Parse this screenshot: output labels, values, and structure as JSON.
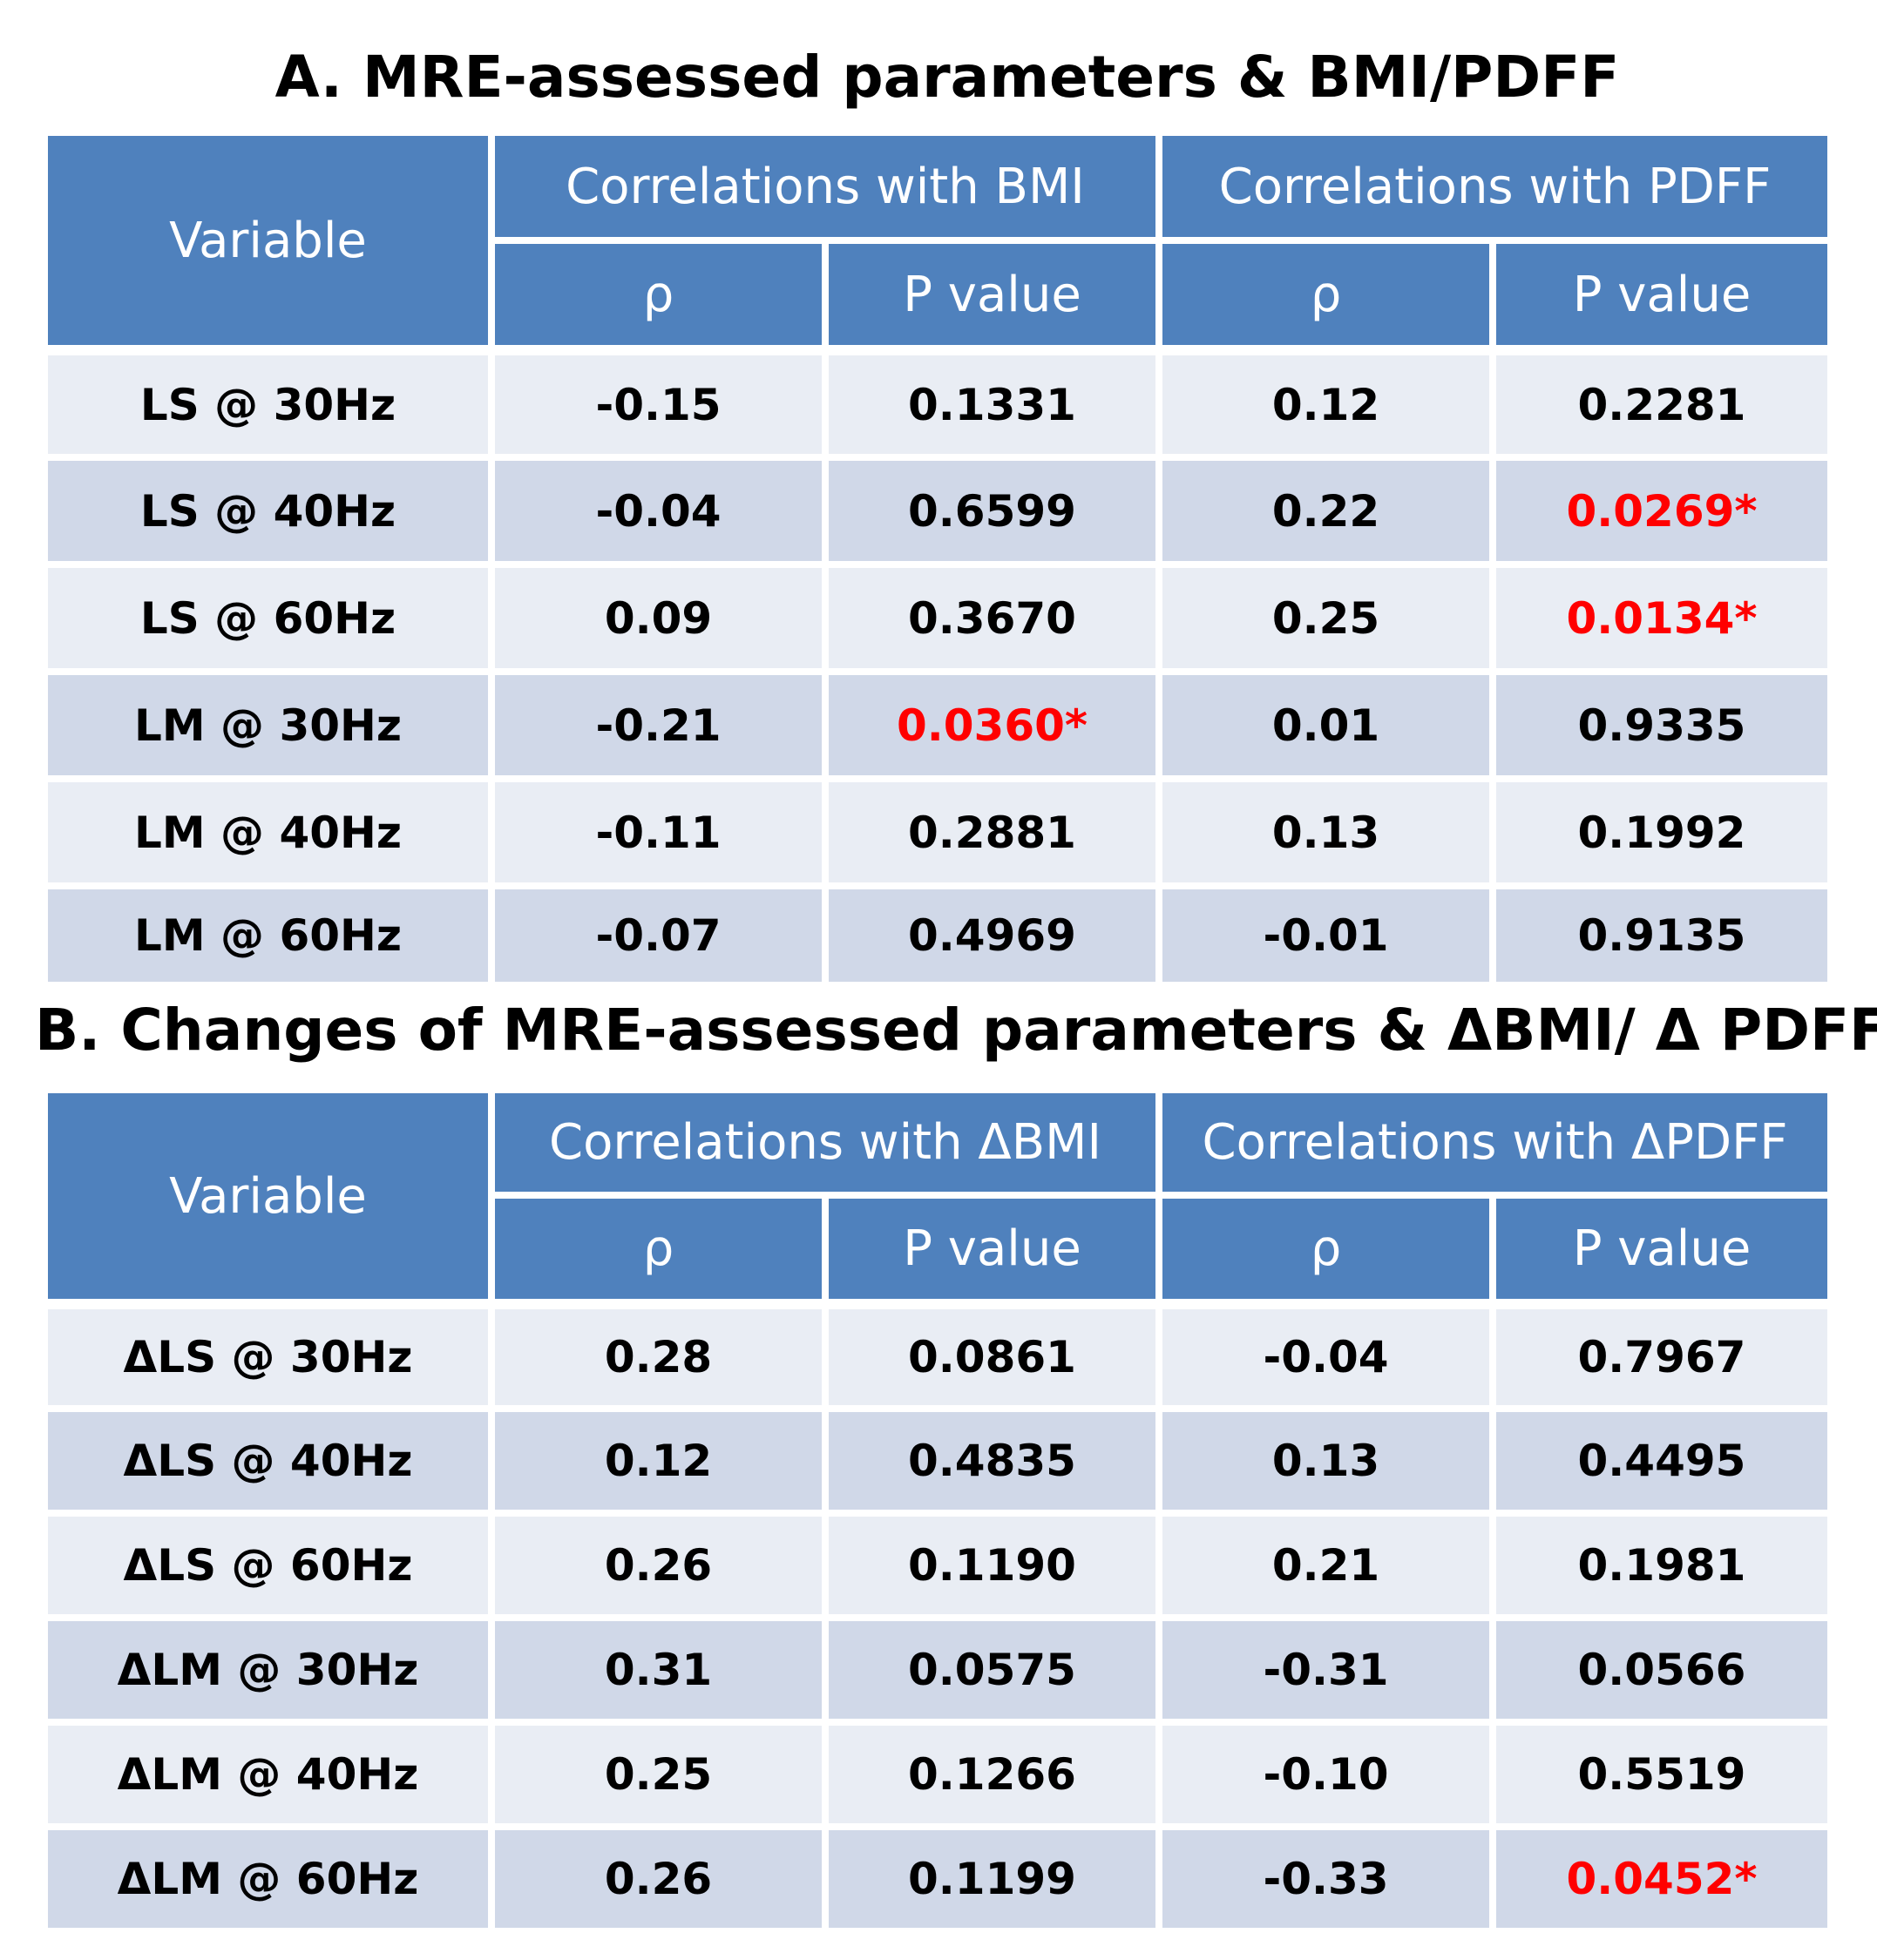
{
  "colors": {
    "header_bg": "#4f81bd",
    "header_text": "#ffffff",
    "row_light": "#e9edf4",
    "row_dark": "#d0d8e8",
    "significant_text": "#ff0000"
  },
  "table_a": {
    "title": "A. MRE-assessed parameters & BMI/PDFF",
    "variable_header": "Variable",
    "group1_header": "Correlations with BMI",
    "group2_header": "Correlations with PDFF",
    "rho_label": "ρ",
    "p_label": "P value",
    "rows": [
      {
        "variable": "LS @ 30Hz",
        "rho1": "-0.15",
        "p1": "0.1331",
        "rho2": "0.12",
        "p2": "0.2281",
        "sig": [
          false,
          false
        ]
      },
      {
        "variable": "LS @ 40Hz",
        "rho1": "-0.04",
        "p1": "0.6599",
        "rho2": "0.22",
        "p2": "0.0269*",
        "sig": [
          false,
          true
        ]
      },
      {
        "variable": "LS @ 60Hz",
        "rho1": "0.09",
        "p1": "0.3670",
        "rho2": "0.25",
        "p2": "0.0134*",
        "sig": [
          false,
          true
        ]
      },
      {
        "variable": "LM @ 30Hz",
        "rho1": "-0.21",
        "p1": "0.0360*",
        "rho2": "0.01",
        "p2": "0.9335",
        "sig": [
          true,
          false
        ]
      },
      {
        "variable": "LM @ 40Hz",
        "rho1": "-0.11",
        "p1": "0.2881",
        "rho2": "0.13",
        "p2": "0.1992",
        "sig": [
          false,
          false
        ]
      },
      {
        "variable": "LM @ 60Hz",
        "rho1": "-0.07",
        "p1": "0.4969",
        "rho2": "-0.01",
        "p2": "0.9135",
        "sig": [
          false,
          false
        ]
      }
    ]
  },
  "table_b": {
    "title": "B. Changes of MRE-assessed parameters & ΔBMI/ Δ PDFF",
    "variable_header": "Variable",
    "group1_header": "Correlations with ΔBMI",
    "group2_header": "Correlations with ΔPDFF",
    "rho_label": "ρ",
    "p_label": "P value",
    "rows": [
      {
        "variable": "ΔLS @ 30Hz",
        "rho1": "0.28",
        "p1": "0.0861",
        "rho2": "-0.04",
        "p2": "0.7967",
        "sig": [
          false,
          false
        ]
      },
      {
        "variable": "ΔLS @ 40Hz",
        "rho1": "0.12",
        "p1": "0.4835",
        "rho2": "0.13",
        "p2": "0.4495",
        "sig": [
          false,
          false
        ]
      },
      {
        "variable": "ΔLS @ 60Hz",
        "rho1": "0.26",
        "p1": "0.1190",
        "rho2": "0.21",
        "p2": "0.1981",
        "sig": [
          false,
          false
        ]
      },
      {
        "variable": "ΔLM @ 30Hz",
        "rho1": "0.31",
        "p1": "0.0575",
        "rho2": "-0.31",
        "p2": "0.0566",
        "sig": [
          false,
          false
        ]
      },
      {
        "variable": "ΔLM @ 40Hz",
        "rho1": "0.25",
        "p1": "0.1266",
        "rho2": "-0.10",
        "p2": "0.5519",
        "sig": [
          false,
          false
        ]
      },
      {
        "variable": "ΔLM @ 60Hz",
        "rho1": "0.26",
        "p1": "0.1199",
        "rho2": "-0.33",
        "p2": "0.0452*",
        "sig": [
          false,
          true
        ]
      }
    ]
  }
}
